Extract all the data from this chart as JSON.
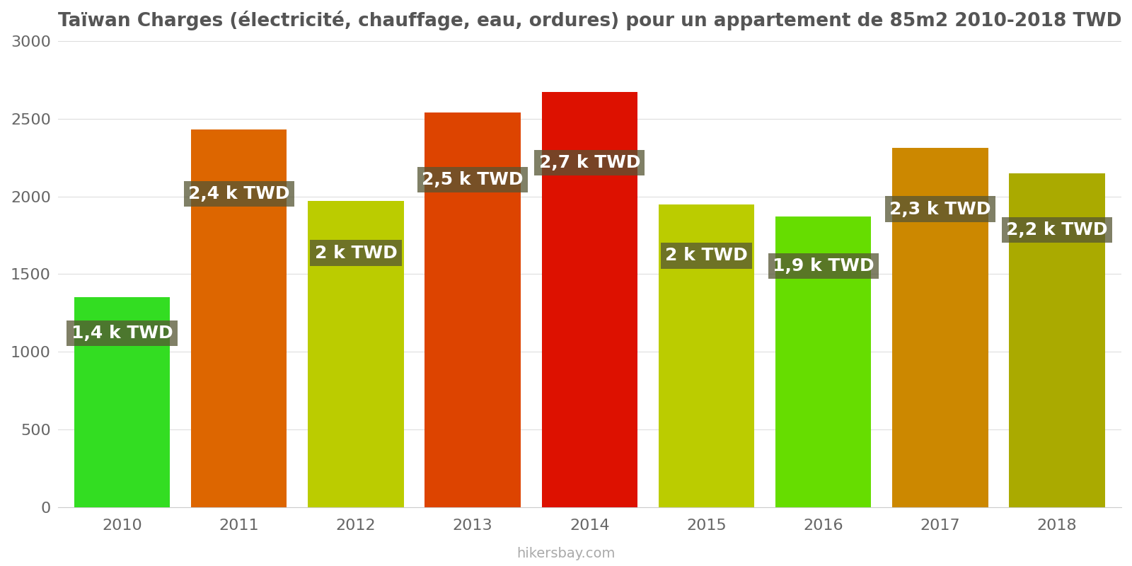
{
  "title": "Taïwan Charges (électricité, chauffage, eau, ordures) pour un appartement de 85m2 2010-2018 TWD",
  "years": [
    2010,
    2011,
    2012,
    2013,
    2014,
    2015,
    2016,
    2017,
    2018
  ],
  "values": [
    1350,
    2430,
    1970,
    2540,
    2670,
    1950,
    1870,
    2310,
    2150
  ],
  "labels": [
    "1,4 k TWD",
    "2,4 k TWD",
    "2 k TWD",
    "2,5 k TWD",
    "2,7 k TWD",
    "2 k TWD",
    "1,9 k TWD",
    "2,3 k TWD",
    "2,2 k TWD"
  ],
  "bar_colors": [
    "#33dd22",
    "#dd6600",
    "#bbcc00",
    "#dd4400",
    "#dd1100",
    "#bbcc00",
    "#66dd00",
    "#cc8800",
    "#aaaa00"
  ],
  "ylim": [
    0,
    3000
  ],
  "yticks": [
    0,
    500,
    1000,
    1500,
    2000,
    2500,
    3000
  ],
  "background_color": "#ffffff",
  "label_bg_color": "#555533",
  "label_text_color": "#ffffff",
  "footer": "hikersbay.com",
  "title_fontsize": 19,
  "label_fontsize": 18,
  "tick_fontsize": 16,
  "footer_fontsize": 14,
  "bar_width": 0.82
}
